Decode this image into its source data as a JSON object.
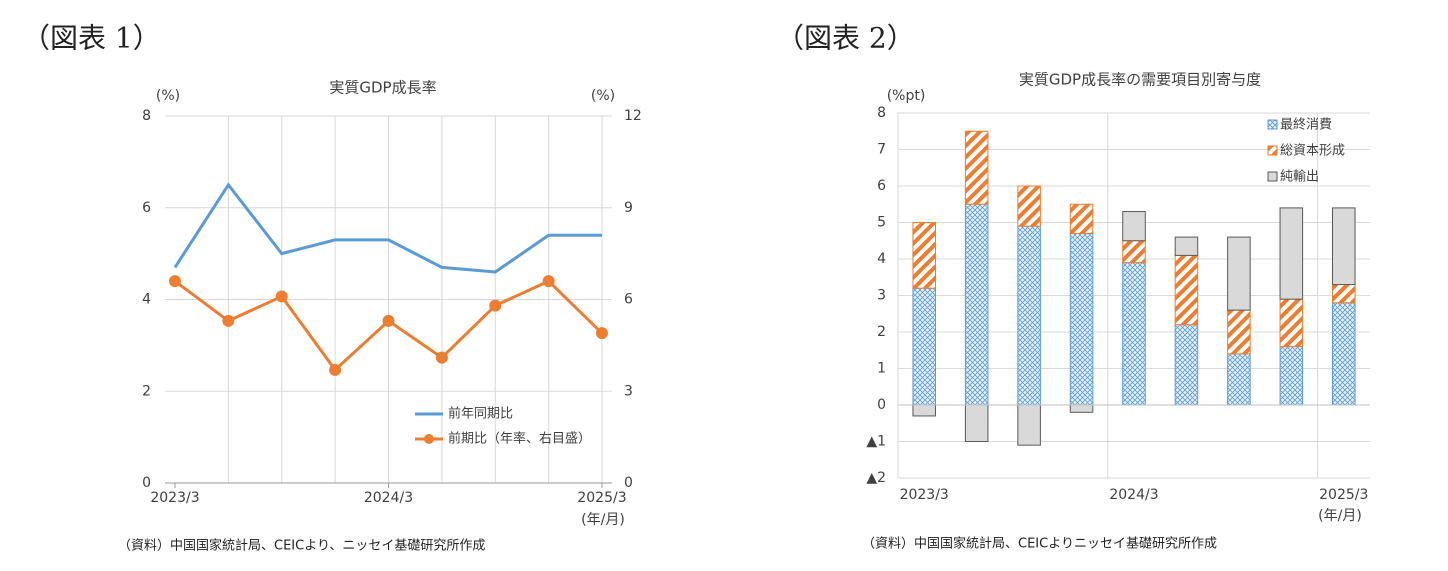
{
  "chart_data": [
    {
      "type": "line",
      "heading": "（図表 1）",
      "title": "実質GDP成長率",
      "y_label": "(%)",
      "y2_label": "(%)",
      "x_unit": "(年/月)",
      "source": "（資料）中国国家統計局、CEICより、ニッセイ基礎研究所作成",
      "categories": [
        "2023/3",
        null,
        null,
        null,
        "2024/3",
        null,
        null,
        null,
        "2025/3"
      ],
      "series": [
        {
          "name": "前年同期比",
          "color": "#5b9bd5",
          "values": [
            4.7,
            6.5,
            5.0,
            5.3,
            5.3,
            4.7,
            4.6,
            5.4,
            5.4
          ]
        },
        {
          "name": "前期比（年率、右目盛）",
          "color": "#ed7d31",
          "axis": "y2",
          "marker": "circle",
          "values": [
            6.6,
            5.3,
            6.1,
            3.7,
            5.3,
            4.1,
            5.8,
            6.6,
            4.9
          ]
        }
      ],
      "ylim": [
        0,
        8
      ],
      "yticks": [
        0,
        2,
        4,
        6,
        8
      ],
      "y2lim": [
        0,
        12
      ],
      "y2ticks": [
        0,
        3,
        6,
        9,
        12
      ],
      "grid": true,
      "legend": "lower right"
    },
    {
      "type": "bar",
      "stacked": true,
      "heading": "（図表 2）",
      "title": "実質GDP成長率の需要項目別寄与度",
      "y_label": "(%pt)",
      "x_unit": "(年/月)",
      "source": "（資料）中国国家統計局、CEICよりニッセイ基礎研究所作成",
      "categories": [
        "2023/3",
        null,
        null,
        null,
        "2024/3",
        null,
        null,
        null,
        "2025/3"
      ],
      "series": [
        {
          "name": "最終消費",
          "color": "#5b9bd5",
          "pattern": "crosshatch",
          "values": [
            3.2,
            5.5,
            4.9,
            4.7,
            3.9,
            2.2,
            1.4,
            1.6,
            2.8
          ]
        },
        {
          "name": "総資本形成",
          "color": "#ed7d31",
          "pattern": "stripes",
          "values": [
            1.8,
            2.0,
            1.1,
            0.8,
            0.6,
            1.9,
            1.2,
            1.3,
            0.5
          ]
        },
        {
          "name": "純輸出",
          "color": "#d9d9d9",
          "pattern": "solid",
          "values": [
            -0.3,
            -1.0,
            -1.1,
            -0.2,
            0.8,
            0.5,
            2.0,
            2.5,
            2.1
          ]
        }
      ],
      "ylim": [
        -2,
        8
      ],
      "yticks": [
        {
          "value": -2,
          "label": "▲2"
        },
        {
          "value": -1,
          "label": "▲1"
        },
        0,
        1,
        2,
        3,
        4,
        5,
        6,
        7,
        8
      ],
      "grid": true,
      "legend": "upper right"
    }
  ]
}
